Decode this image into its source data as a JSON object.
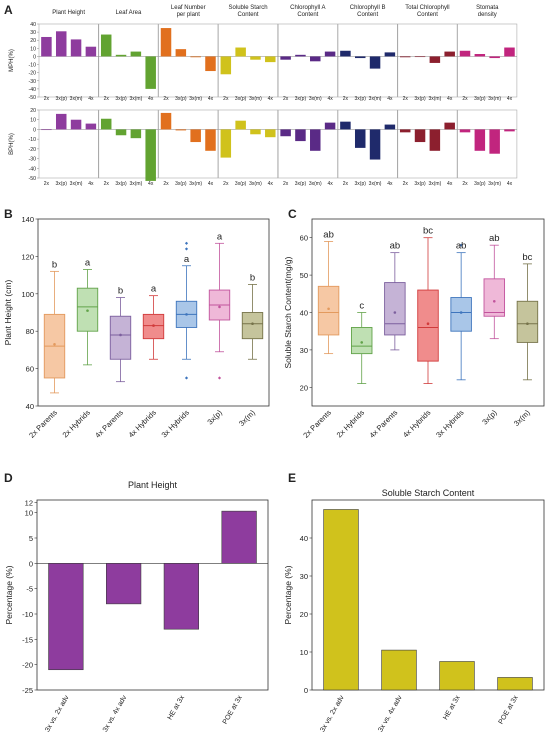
{
  "panel_labels": [
    "A",
    "B",
    "C",
    "D",
    "E"
  ],
  "chart_data": [
    {
      "type": "bar",
      "panel": "A",
      "row": "MPH",
      "ylabel": "MPH(%)",
      "ylim": [
        -50,
        40
      ],
      "yticks": [
        "40",
        "30",
        "20",
        "10",
        "0",
        "-10",
        "-20",
        "-30",
        "-40",
        "-50"
      ],
      "categories": [
        "2x",
        "3x(p)",
        "3x(m)",
        "4x"
      ],
      "series": [
        {
          "name": "Plant Height",
          "color": "#8e3c9e",
          "values": [
            24,
            31,
            21,
            12
          ]
        },
        {
          "name": "Leaf Area",
          "color": "#62a331",
          "values": [
            27,
            2,
            6,
            -40
          ]
        },
        {
          "name": "Leaf Number per plant",
          "color": "#e1701e",
          "values": [
            35,
            9,
            -1,
            -18
          ]
        },
        {
          "name": "Soluble Starch Content",
          "color": "#d0c21c",
          "values": [
            -22,
            11,
            -4,
            -7
          ]
        },
        {
          "name": "Chlorophyll A Content",
          "color": "#5a2a86",
          "values": [
            -4,
            2,
            -6,
            6
          ]
        },
        {
          "name": "Chlorophyll B Content",
          "color": "#1f2a6b",
          "values": [
            7,
            -2,
            -15,
            5
          ]
        },
        {
          "name": "Total Chlorophyll Content",
          "color": "#8c1f2e",
          "values": [
            -1,
            0,
            -8,
            6
          ]
        },
        {
          "name": "Stomata density",
          "color": "#c1257e",
          "values": [
            7,
            3,
            -2,
            11
          ]
        }
      ]
    },
    {
      "type": "bar",
      "panel": "A",
      "row": "BPH",
      "ylabel": "BPH(%)",
      "ylim": [
        -50,
        20
      ],
      "yticks": [
        "20",
        "10",
        "0",
        "-10",
        "-20",
        "-30",
        "-40",
        "-50"
      ],
      "categories": [
        "2x",
        "3x(p)",
        "3x(m)",
        "4x"
      ],
      "series": [
        {
          "name": "Plant Height",
          "color": "#8e3c9e",
          "values": [
            0,
            16,
            10,
            6
          ]
        },
        {
          "name": "Leaf Area",
          "color": "#62a331",
          "values": [
            11,
            -6,
            -9,
            -53
          ]
        },
        {
          "name": "Leaf Number per plant",
          "color": "#e1701e",
          "values": [
            17,
            -1,
            -13,
            -22
          ]
        },
        {
          "name": "Soluble Starch Content",
          "color": "#d0c21c",
          "values": [
            -29,
            9,
            -5,
            -8
          ]
        },
        {
          "name": "Chlorophyll A Content",
          "color": "#5a2a86",
          "values": [
            -7,
            -12,
            -22,
            7
          ]
        },
        {
          "name": "Chlorophyll B Content",
          "color": "#1f2a6b",
          "values": [
            8,
            -19,
            -31,
            5
          ]
        },
        {
          "name": "Total Chlorophyll Content",
          "color": "#8c1f2e",
          "values": [
            -3,
            -13,
            -22,
            7
          ]
        },
        {
          "name": "Stomata density",
          "color": "#c1257e",
          "values": [
            -3,
            -22,
            -25,
            -2
          ]
        }
      ]
    },
    {
      "type": "box",
      "panel": "B",
      "ylabel": "Plant Height (cm)",
      "ylim": [
        40,
        140
      ],
      "yticks": [
        "140",
        "120",
        "100",
        "80",
        "60",
        "40"
      ],
      "categories": [
        "2x Parents",
        "2x Hybrids",
        "4x Parents",
        "4x Hybrids",
        "3x Hybrids",
        "3x(p)",
        "3x(m)"
      ],
      "letters": [
        "b",
        "a",
        "b",
        "a",
        "a",
        "a",
        "b"
      ],
      "fills": [
        "#f6c8a4",
        "#bfe0b3",
        "#c5b3d6",
        "#f08c8c",
        "#a9c6e8",
        "#efb8d8",
        "#c5c49c"
      ],
      "strokes": [
        "#e39a5e",
        "#62a34a",
        "#7c5f9e",
        "#d13b3b",
        "#3e75bd",
        "#c2549d",
        "#76734a"
      ],
      "boxes": [
        {
          "min": 47,
          "q1": 55,
          "median": 72,
          "q3": 89,
          "max": 112,
          "mean": 73,
          "outliers": []
        },
        {
          "min": 62,
          "q1": 80,
          "median": 93,
          "q3": 103,
          "max": 113,
          "mean": 91,
          "outliers": []
        },
        {
          "min": 53,
          "q1": 65,
          "median": 78,
          "q3": 88,
          "max": 98,
          "mean": 78,
          "outliers": []
        },
        {
          "min": 65,
          "q1": 76,
          "median": 83,
          "q3": 89,
          "max": 99,
          "mean": 83,
          "outliers": []
        },
        {
          "min": 65,
          "q1": 82,
          "median": 89,
          "q3": 96,
          "max": 115,
          "mean": 89,
          "outliers": [
            124,
            127,
            55
          ]
        },
        {
          "min": 69,
          "q1": 86,
          "median": 94,
          "q3": 102,
          "max": 127,
          "mean": 93,
          "outliers": [
            55
          ]
        },
        {
          "min": 65,
          "q1": 76,
          "median": 84,
          "q3": 90,
          "max": 105,
          "mean": 84,
          "outliers": []
        }
      ]
    },
    {
      "type": "box",
      "panel": "C",
      "ylabel": "Soluble Starch Content(mg/g)",
      "ylim": [
        15,
        65
      ],
      "yticks": [
        "60",
        "50",
        "40",
        "30",
        "20"
      ],
      "categories": [
        "2x Parents",
        "2x Hybrids",
        "4x Parents",
        "4x Hybrids",
        "3x Hybrids",
        "3x(p)",
        "3x(m)"
      ],
      "letters": [
        "ab",
        "c",
        "ab",
        "bc",
        "ab",
        "ab",
        "bc"
      ],
      "fills": [
        "#f6c8a4",
        "#bfe0b3",
        "#c5b3d6",
        "#f08c8c",
        "#a9c6e8",
        "#efb8d8",
        "#c5c49c"
      ],
      "strokes": [
        "#e39a5e",
        "#62a34a",
        "#7c5f9e",
        "#d13b3b",
        "#3e75bd",
        "#c2549d",
        "#76734a"
      ],
      "boxes": [
        {
          "min": 29,
          "q1": 34,
          "median": 40,
          "q3": 47,
          "max": 59,
          "mean": 41,
          "outliers": []
        },
        {
          "min": 21,
          "q1": 29,
          "median": 31,
          "q3": 36,
          "max": 40,
          "mean": 32,
          "outliers": []
        },
        {
          "min": 30,
          "q1": 34,
          "median": 37,
          "q3": 48,
          "max": 56,
          "mean": 40,
          "outliers": []
        },
        {
          "min": 21,
          "q1": 27,
          "median": 36,
          "q3": 46,
          "max": 60,
          "mean": 37,
          "outliers": []
        },
        {
          "min": 22,
          "q1": 35,
          "median": 40,
          "q3": 44,
          "max": 56,
          "mean": 40,
          "outliers": [
            58
          ]
        },
        {
          "min": 33,
          "q1": 39,
          "median": 40,
          "q3": 49,
          "max": 58,
          "mean": 43,
          "outliers": []
        },
        {
          "min": 22,
          "q1": 32,
          "median": 37,
          "q3": 43,
          "max": 53,
          "mean": 37,
          "outliers": []
        }
      ]
    },
    {
      "type": "bar",
      "panel": "D",
      "title": "Plant Height",
      "ylabel": "Percentage (%)",
      "ylim": [
        -25,
        12.5
      ],
      "yticks": [
        "12",
        "10",
        "5",
        "0",
        "-5",
        "-10",
        "-15",
        "-20",
        "-25"
      ],
      "categories": [
        "3x vs. 2x adv",
        "3x vs. 4x adv",
        "HE at 3x",
        "POE at 3x"
      ],
      "values": [
        -21,
        -8,
        -13,
        10.3
      ],
      "color": "#8e3c9e"
    },
    {
      "type": "bar",
      "panel": "E",
      "title": "Soluble Starch Content",
      "ylabel": "Percentage (%)",
      "ylim": [
        0,
        50
      ],
      "yticks": [
        "40",
        "30",
        "20",
        "10",
        "0"
      ],
      "categories": [
        "3x vs. 2x adv",
        "3x vs. 4x adv",
        "HE at 3x",
        "POE at 3x"
      ],
      "values": [
        47.5,
        10.5,
        7.5,
        3.3
      ],
      "color": "#d0c21c"
    }
  ]
}
